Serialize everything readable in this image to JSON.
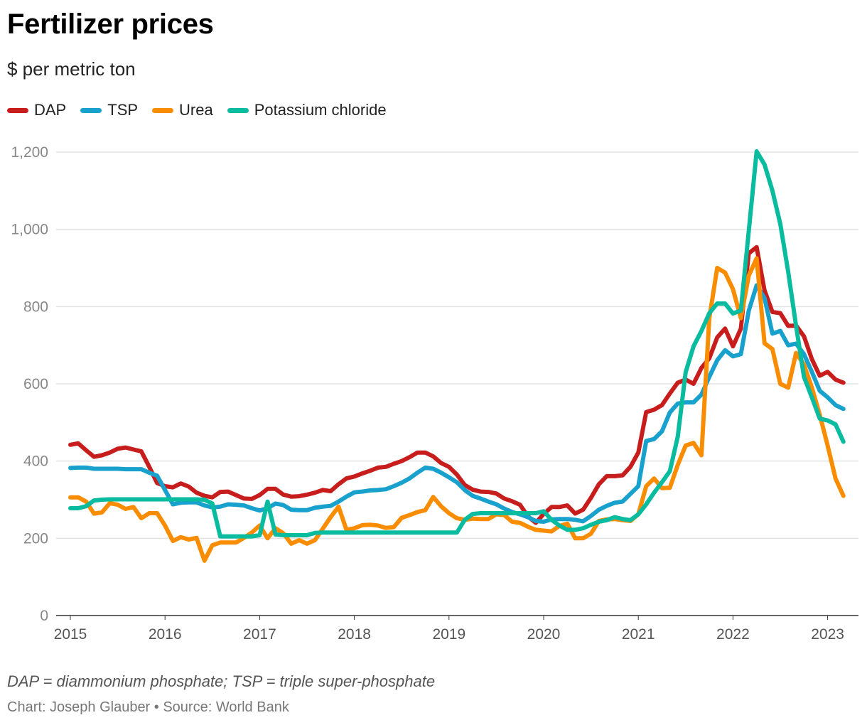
{
  "header": {
    "title": "Fertilizer prices",
    "subtitle": "$ per metric ton"
  },
  "footer": {
    "note": "DAP = diammonium phosphate; TSP = triple super-phosphate",
    "source": "Chart: Joseph Glauber • Source: World Bank"
  },
  "chart_data": {
    "type": "line",
    "title": "Fertilizer prices",
    "subtitle": "$ per metric ton",
    "xlabel": "",
    "ylabel": "",
    "ylim": [
      0,
      1200
    ],
    "yticks": [
      "0",
      "200",
      "400",
      "600",
      "800",
      "1,000",
      "1,200"
    ],
    "ytick_values": [
      0,
      200,
      400,
      600,
      800,
      1000,
      1200
    ],
    "xticks": [
      "2015",
      "2016",
      "2017",
      "2018",
      "2019",
      "2020",
      "2021",
      "2022",
      "2023"
    ],
    "grid": true,
    "legend": "top-left",
    "x": [
      "2015-01",
      "2015-02",
      "2015-03",
      "2015-04",
      "2015-05",
      "2015-06",
      "2015-07",
      "2015-08",
      "2015-09",
      "2015-10",
      "2015-11",
      "2015-12",
      "2016-01",
      "2016-02",
      "2016-03",
      "2016-04",
      "2016-05",
      "2016-06",
      "2016-07",
      "2016-08",
      "2016-09",
      "2016-10",
      "2016-11",
      "2016-12",
      "2017-01",
      "2017-02",
      "2017-03",
      "2017-04",
      "2017-05",
      "2017-06",
      "2017-07",
      "2017-08",
      "2017-09",
      "2017-10",
      "2017-11",
      "2017-12",
      "2018-01",
      "2018-02",
      "2018-03",
      "2018-04",
      "2018-05",
      "2018-06",
      "2018-07",
      "2018-08",
      "2018-09",
      "2018-10",
      "2018-11",
      "2018-12",
      "2019-01",
      "2019-02",
      "2019-03",
      "2019-04",
      "2019-05",
      "2019-06",
      "2019-07",
      "2019-08",
      "2019-09",
      "2019-10",
      "2019-11",
      "2019-12",
      "2020-01",
      "2020-02",
      "2020-03",
      "2020-04",
      "2020-05",
      "2020-06",
      "2020-07",
      "2020-08",
      "2020-09",
      "2020-10",
      "2020-11",
      "2020-12",
      "2021-01",
      "2021-02",
      "2021-03",
      "2021-04",
      "2021-05",
      "2021-06",
      "2021-07",
      "2021-08",
      "2021-09",
      "2021-10",
      "2021-11",
      "2021-12",
      "2022-01",
      "2022-02",
      "2022-03",
      "2022-04",
      "2022-05",
      "2022-06",
      "2022-07",
      "2022-08",
      "2022-09",
      "2022-10",
      "2022-11",
      "2022-12",
      "2023-01",
      "2023-02",
      "2023-03"
    ],
    "series": [
      {
        "name": "DAP",
        "color": "#c71e1d",
        "values": [
          442,
          446,
          428,
          411,
          415,
          422,
          432,
          435,
          430,
          425,
          385,
          343,
          335,
          332,
          342,
          334,
          318,
          310,
          306,
          320,
          321,
          312,
          303,
          302,
          312,
          328,
          328,
          313,
          308,
          309,
          313,
          318,
          325,
          322,
          340,
          355,
          360,
          368,
          375,
          383,
          385,
          393,
          400,
          410,
          422,
          422,
          412,
          395,
          385,
          365,
          338,
          326,
          321,
          320,
          316,
          303,
          296,
          287,
          257,
          240,
          263,
          281,
          281,
          285,
          264,
          274,
          305,
          340,
          361,
          361,
          363,
          385,
          422,
          527,
          533,
          545,
          575,
          603,
          611,
          600,
          641,
          666,
          720,
          743,
          697,
          743,
          938,
          954,
          842,
          786,
          783,
          750,
          751,
          723,
          664,
          621,
          631,
          611,
          603
        ]
      },
      {
        "name": "TSP",
        "color": "#18a1cd",
        "values": [
          382,
          383,
          383,
          380,
          380,
          380,
          380,
          379,
          379,
          379,
          370,
          362,
          325,
          288,
          292,
          293,
          293,
          285,
          280,
          282,
          288,
          287,
          285,
          278,
          272,
          278,
          290,
          286,
          274,
          273,
          273,
          279,
          282,
          284,
          295,
          308,
          319,
          321,
          324,
          325,
          327,
          335,
          344,
          355,
          370,
          383,
          380,
          370,
          358,
          345,
          325,
          310,
          303,
          295,
          288,
          277,
          268,
          262,
          255,
          245,
          243,
          249,
          250,
          250,
          248,
          244,
          258,
          274,
          284,
          292,
          295,
          315,
          335,
          452,
          457,
          477,
          526,
          549,
          552,
          552,
          572,
          618,
          661,
          687,
          671,
          677,
          789,
          855,
          822,
          730,
          737,
          700,
          704,
          677,
          631,
          582,
          565,
          545,
          535
        ]
      },
      {
        "name": "Urea",
        "color": "#fa8c00",
        "values": [
          306,
          306,
          295,
          264,
          267,
          291,
          287,
          276,
          281,
          252,
          265,
          265,
          233,
          193,
          203,
          197,
          201,
          142,
          182,
          189,
          189,
          189,
          201,
          215,
          233,
          200,
          226,
          213,
          186,
          195,
          186,
          195,
          225,
          255,
          282,
          222,
          226,
          234,
          235,
          233,
          227,
          229,
          253,
          260,
          268,
          273,
          307,
          283,
          265,
          252,
          248,
          251,
          250,
          250,
          262,
          260,
          243,
          240,
          230,
          222,
          220,
          218,
          232,
          238,
          200,
          200,
          212,
          245,
          249,
          250,
          247,
          245,
          262,
          335,
          355,
          330,
          331,
          390,
          440,
          447,
          415,
          770,
          900,
          888,
          845,
          770,
          880,
          925,
          705,
          690,
          600,
          590,
          680,
          650,
          590,
          520,
          440,
          355,
          310
        ]
      },
      {
        "name": "Potassium chloride",
        "color": "#09bb9f",
        "values": [
          278,
          278,
          283,
          298,
          300,
          301,
          301,
          301,
          301,
          301,
          301,
          301,
          301,
          301,
          301,
          301,
          301,
          300,
          290,
          205,
          205,
          205,
          205,
          205,
          208,
          295,
          210,
          208,
          208,
          208,
          208,
          214,
          215,
          215,
          215,
          215,
          215,
          215,
          215,
          215,
          215,
          215,
          215,
          215,
          215,
          215,
          215,
          215,
          215,
          215,
          248,
          263,
          265,
          265,
          265,
          265,
          265,
          265,
          265,
          265,
          270,
          248,
          233,
          222,
          222,
          226,
          235,
          243,
          247,
          255,
          250,
          247,
          262,
          288,
          318,
          345,
          374,
          463,
          630,
          697,
          737,
          783,
          808,
          808,
          782,
          790,
          995,
          1202,
          1168,
          1100,
          1014,
          890,
          750,
          618,
          565,
          510,
          505,
          495,
          450
        ]
      }
    ]
  }
}
